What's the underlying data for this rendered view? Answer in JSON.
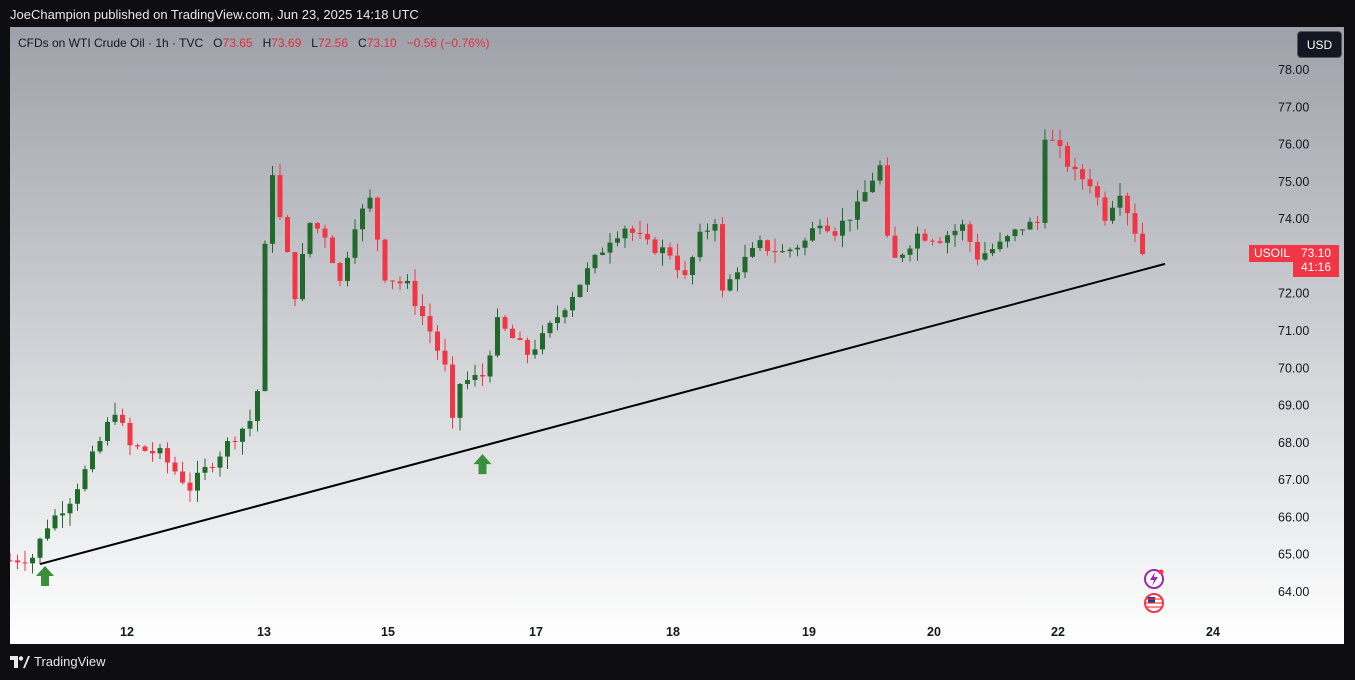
{
  "header": {
    "published": "JoeChampion published on TradingView.com, Jun 23, 2025 14:18 UTC"
  },
  "legend": {
    "symbol": "CFDs on WTI Crude Oil · 1h · TVC",
    "o_label": "O",
    "o_value": "73.65",
    "h_label": "H",
    "h_value": "73.69",
    "l_label": "L",
    "l_value": "72.56",
    "c_label": "C",
    "c_value": "73.10",
    "change": "−0.56 (−0.76%)"
  },
  "currency_button": "USD",
  "last_price": {
    "symbol": "USOIL",
    "price": "73.10",
    "countdown": "41:16"
  },
  "footer": {
    "brand": "TradingView"
  },
  "colors": {
    "up": "#22692d",
    "down": "#f23645",
    "trendline": "#000000",
    "arrow": "#3a8f3c"
  },
  "icons": [
    "lightning-icon",
    "us-flag-icon",
    "up-arrow-icon"
  ],
  "chart_data": {
    "type": "candlestick",
    "title": "CFDs on WTI Crude Oil · 1h · TVC",
    "ylim": [
      63.3,
      78.3
    ],
    "y_ticks": [
      "78.00",
      "77.00",
      "76.00",
      "75.00",
      "74.00",
      "73.00",
      "72.00",
      "71.00",
      "70.00",
      "69.00",
      "68.00",
      "67.00",
      "66.00",
      "65.00",
      "64.00"
    ],
    "x_tick_labels": [
      "12",
      "13",
      "15",
      "17",
      "18",
      "19",
      "20",
      "22",
      "24"
    ],
    "price_path": [
      {
        "t": 0,
        "v": 64.85
      },
      {
        "t": 3,
        "v": 64.95
      },
      {
        "t": 5,
        "v": 65.8
      },
      {
        "t": 8,
        "v": 66.5
      },
      {
        "t": 11,
        "v": 67.6
      },
      {
        "t": 14,
        "v": 68.9
      },
      {
        "t": 16,
        "v": 67.9
      },
      {
        "t": 20,
        "v": 67.7
      },
      {
        "t": 24,
        "v": 66.8
      },
      {
        "t": 27,
        "v": 67.5
      },
      {
        "t": 30,
        "v": 68.2
      },
      {
        "t": 32,
        "v": 68.6
      },
      {
        "t": 33,
        "v": 69.4
      },
      {
        "t": 34,
        "v": 73.2
      },
      {
        "t": 35,
        "v": 75.3
      },
      {
        "t": 36,
        "v": 74.0
      },
      {
        "t": 38,
        "v": 72.0
      },
      {
        "t": 40,
        "v": 73.9
      },
      {
        "t": 42,
        "v": 73.6
      },
      {
        "t": 44,
        "v": 72.3
      },
      {
        "t": 46,
        "v": 73.9
      },
      {
        "t": 48,
        "v": 74.5
      },
      {
        "t": 50,
        "v": 72.5
      },
      {
        "t": 53,
        "v": 72.2
      },
      {
        "t": 56,
        "v": 71.0
      },
      {
        "t": 58,
        "v": 70.0
      },
      {
        "t": 59,
        "v": 68.5
      },
      {
        "t": 60,
        "v": 69.6
      },
      {
        "t": 63,
        "v": 69.8
      },
      {
        "t": 65,
        "v": 71.2
      },
      {
        "t": 67,
        "v": 70.8
      },
      {
        "t": 69,
        "v": 70.4
      },
      {
        "t": 71,
        "v": 70.8
      },
      {
        "t": 74,
        "v": 71.7
      },
      {
        "t": 77,
        "v": 72.6
      },
      {
        "t": 80,
        "v": 73.5
      },
      {
        "t": 82,
        "v": 73.8
      },
      {
        "t": 85,
        "v": 73.3
      },
      {
        "t": 88,
        "v": 73.1
      },
      {
        "t": 90,
        "v": 72.4
      },
      {
        "t": 92,
        "v": 73.5
      },
      {
        "t": 94,
        "v": 74.0
      },
      {
        "t": 95,
        "v": 72.0
      },
      {
        "t": 97,
        "v": 72.7
      },
      {
        "t": 100,
        "v": 73.3
      },
      {
        "t": 103,
        "v": 73.1
      },
      {
        "t": 106,
        "v": 73.4
      },
      {
        "t": 108,
        "v": 74.0
      },
      {
        "t": 110,
        "v": 73.7
      },
      {
        "t": 113,
        "v": 74.3
      },
      {
        "t": 115,
        "v": 75.1
      },
      {
        "t": 116,
        "v": 75.4
      },
      {
        "t": 117,
        "v": 73.4
      },
      {
        "t": 118,
        "v": 72.9
      },
      {
        "t": 121,
        "v": 73.6
      },
      {
        "t": 124,
        "v": 73.5
      },
      {
        "t": 127,
        "v": 73.8
      },
      {
        "t": 129,
        "v": 73.0
      },
      {
        "t": 132,
        "v": 73.3
      },
      {
        "t": 135,
        "v": 73.8
      },
      {
        "t": 137,
        "v": 73.9
      },
      {
        "t": 138,
        "v": 76.3
      },
      {
        "t": 140,
        "v": 75.8
      },
      {
        "t": 142,
        "v": 75.2
      },
      {
        "t": 144,
        "v": 75.0
      },
      {
        "t": 146,
        "v": 74.1
      },
      {
        "t": 148,
        "v": 74.8
      },
      {
        "t": 150,
        "v": 73.7
      },
      {
        "t": 151,
        "v": 73.1
      }
    ],
    "series": [
      {
        "name": "USOIL",
        "last": 73.1
      }
    ],
    "trendline": {
      "from": {
        "t": 2,
        "v": 64.75
      },
      "to": {
        "t": 154,
        "v": 72.8
      }
    },
    "markers": [
      {
        "t": 2,
        "v": 64.75,
        "type": "arrow-up"
      },
      {
        "t": 59,
        "v": 67.75,
        "type": "arrow-up"
      }
    ],
    "grid": false
  }
}
